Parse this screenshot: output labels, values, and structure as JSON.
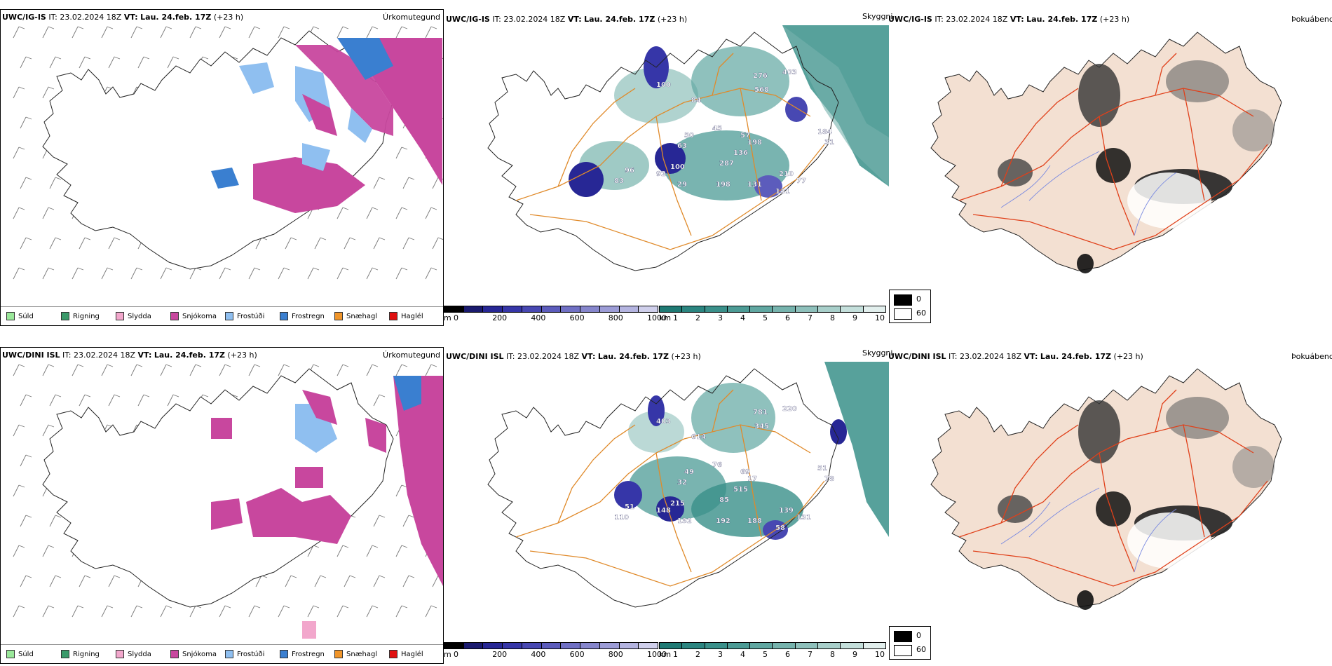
{
  "precip_legend": [
    {
      "label": "Súld",
      "color": "#9ae89a"
    },
    {
      "label": "Rigning",
      "color": "#3a9a6a"
    },
    {
      "label": "Slydda",
      "color": "#f2a7cc"
    },
    {
      "label": "Snjókoma",
      "color": "#c8479e"
    },
    {
      "label": "Frostúði",
      "color": "#8fbff0"
    },
    {
      "label": "Frostregn",
      "color": "#3a7fd0"
    },
    {
      "label": "Snæhagl",
      "color": "#f0952a"
    },
    {
      "label": "Haglél",
      "color": "#e01010"
    }
  ],
  "rows": [
    {
      "model": "UWC/IG-IS",
      "it_label": "IT:",
      "it_value": "23.02.2024 18Z",
      "vt_label": "VT:",
      "vt_value": "Lau. 24.feb. 17Z",
      "lead": "(+23 h)",
      "titles": {
        "precip": "Úrkomutegund",
        "cloud": "Skyggni",
        "fog": "Þokuábendi"
      },
      "cloud_labels": [
        "276",
        "403",
        "568",
        "100",
        "84",
        "45",
        "57",
        "198",
        "136",
        "63",
        "50",
        "96",
        "92",
        "100",
        "83",
        "287",
        "29",
        "198",
        "131",
        "210",
        "131",
        "77",
        "184",
        "31"
      ]
    },
    {
      "model": "UWC/DINI ISL",
      "it_label": "IT:",
      "it_value": "23.02.2024 18Z",
      "vt_label": "VT:",
      "vt_value": "Lau. 24.feb. 17Z",
      "lead": "(+23 h)",
      "titles": {
        "precip": "Úrkomutegund",
        "cloud": "Skyggni",
        "fog": "Þokuábendi"
      },
      "cloud_labels": [
        "781",
        "220",
        "345",
        "403",
        "614",
        "76",
        "69",
        "17",
        "515",
        "32",
        "49",
        "51",
        "148",
        "215",
        "110",
        "85",
        "132",
        "192",
        "188",
        "139",
        "58",
        "131",
        "51",
        "78"
      ]
    }
  ],
  "colorbar_m": {
    "unit": "m",
    "ticks": [
      "0",
      "200",
      "400",
      "600",
      "800",
      "1000"
    ],
    "colors": [
      "#000000",
      "#1a1a6e",
      "#272795",
      "#3636a8",
      "#4848b2",
      "#5c5cbc",
      "#7070c4",
      "#8686cc",
      "#9c9cd6",
      "#b4b4e0",
      "#cfcfeb"
    ]
  },
  "colorbar_km": {
    "unit": "km",
    "ticks": [
      "1",
      "2",
      "3",
      "4",
      "5",
      "6",
      "7",
      "8",
      "9",
      "10"
    ],
    "colors": [
      "#1f7a74",
      "#2b8580",
      "#3a908a",
      "#4c9b95",
      "#60a7a1",
      "#76b3ad",
      "#8ec0bb",
      "#a8cfca",
      "#c4dfdb",
      "#e2efed"
    ]
  },
  "fog_legend": [
    {
      "value": "0",
      "color": "#000000"
    },
    {
      "value": "60",
      "color": "#ffffff"
    }
  ]
}
